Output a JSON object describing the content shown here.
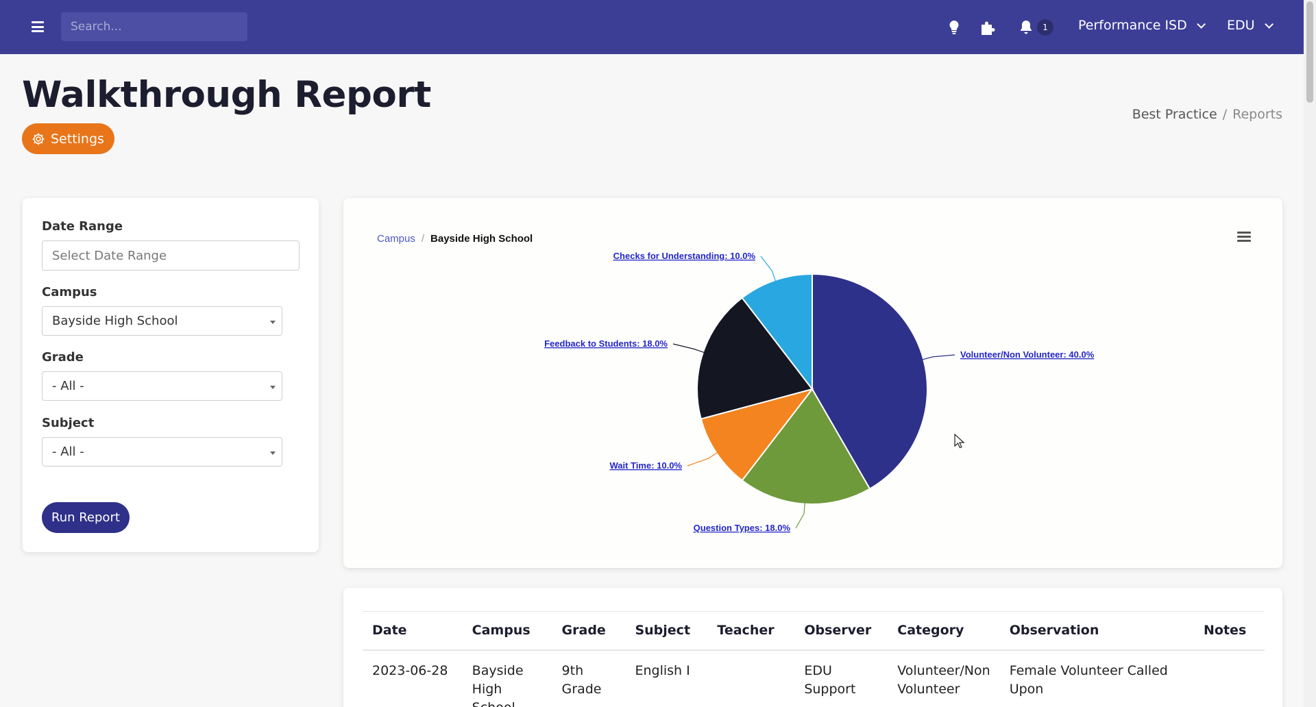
{
  "topbar": {
    "search_placeholder": "Search...",
    "notification_count": "1",
    "org_menu": "Performance ISD",
    "user_menu": "EDU",
    "colors": {
      "bar": "#3c3e96"
    }
  },
  "page": {
    "title": "Walkthrough Report",
    "settings_label": "Settings",
    "breadcrumb": [
      "Best Practice",
      "Reports"
    ]
  },
  "filters": {
    "date_range": {
      "label": "Date Range",
      "placeholder": "Select Date Range"
    },
    "campus": {
      "label": "Campus",
      "value": "Bayside High School"
    },
    "grade": {
      "label": "Grade",
      "value": "- All -"
    },
    "subject": {
      "label": "Subject",
      "value": "- All -"
    },
    "run_label": "Run Report"
  },
  "chart": {
    "breadcrumb_root": "Campus",
    "breadcrumb_current": "Bayside High School"
  },
  "chart_data": {
    "type": "pie",
    "title": "",
    "slices": [
      {
        "label": "Volunteer/Non Volunteer: 40.0%",
        "value": 40.0,
        "color": "#2e3189"
      },
      {
        "label": "Question Types: 18.0%",
        "value": 18.0,
        "color": "#6e9a3c"
      },
      {
        "label": "Wait Time: 10.0%",
        "value": 10.0,
        "color": "#f4841f"
      },
      {
        "label": "Feedback to Students: 18.0%",
        "value": 18.0,
        "color": "#141622"
      },
      {
        "label": "Checks for Understanding: 10.0%",
        "value": 10.0,
        "color": "#29a7e0"
      }
    ]
  },
  "table": {
    "headers": [
      "Date",
      "Campus",
      "Grade",
      "Subject",
      "Teacher",
      "Observer",
      "Category",
      "Observation",
      "Notes"
    ],
    "rows": [
      [
        "2023-06-28",
        "Bayside High School",
        "9th Grade",
        "English I",
        "",
        "EDU Support",
        "Volunteer/Non Volunteer",
        "Female Volunteer Called Upon",
        ""
      ]
    ]
  }
}
